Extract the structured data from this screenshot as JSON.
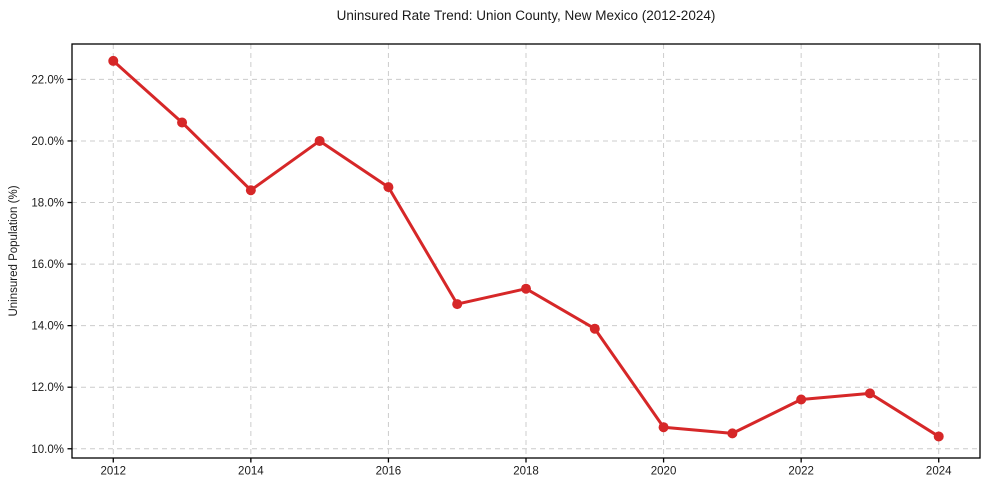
{
  "chart_data": {
    "type": "line",
    "title": "Uninsured Rate Trend: Union County, New Mexico (2012-2024)",
    "xlabel": "",
    "ylabel": "Uninsured Population (%)",
    "x": [
      2012,
      2013,
      2014,
      2015,
      2016,
      2017,
      2018,
      2019,
      2020,
      2021,
      2022,
      2023,
      2024
    ],
    "values": [
      22.6,
      20.6,
      18.4,
      20.0,
      18.5,
      14.7,
      15.2,
      13.9,
      10.7,
      10.5,
      11.6,
      11.8,
      10.4
    ],
    "x_tick_values": [
      2012,
      2014,
      2016,
      2018,
      2020,
      2022,
      2024
    ],
    "x_tick_labels": [
      "2012",
      "2014",
      "2016",
      "2018",
      "2020",
      "2022",
      "2024"
    ],
    "y_tick_values": [
      10,
      12,
      14,
      16,
      18,
      20,
      22
    ],
    "y_tick_labels": [
      "10.0%",
      "12.0%",
      "14.0%",
      "16.0%",
      "18.0%",
      "20.0%",
      "22.0%"
    ],
    "xlim": [
      2011.4,
      2024.6
    ],
    "ylim": [
      9.7,
      23.15
    ],
    "grid": true,
    "grid_style": "dashed",
    "legend": false,
    "colors": {
      "line": "#d62728",
      "marker": "#d62728",
      "grid": "#cccccc",
      "axis": "#000000",
      "text": "#1a1a1a",
      "background": "#ffffff"
    }
  }
}
